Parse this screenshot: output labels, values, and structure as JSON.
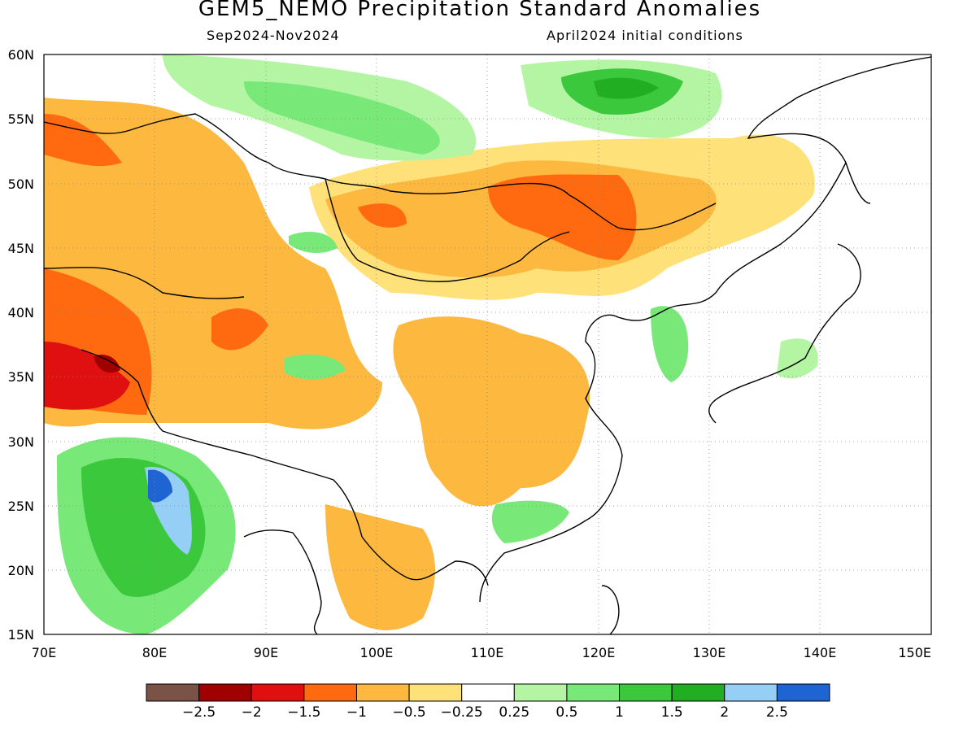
{
  "header": {
    "title": "GEM5_NEMO Precipitation Standard Anomalies",
    "period": "Sep2024-Nov2024",
    "init": "April2024 initial conditions"
  },
  "axes": {
    "lon_range": [
      70,
      150
    ],
    "lat_range": [
      15,
      60
    ],
    "x_ticks": [
      "70E",
      "80E",
      "90E",
      "100E",
      "110E",
      "120E",
      "130E",
      "140E",
      "150E"
    ],
    "y_ticks": [
      "15N",
      "20N",
      "25N",
      "30N",
      "35N",
      "40N",
      "45N",
      "50N",
      "55N",
      "60N"
    ],
    "grid": "dotted"
  },
  "colorbar": {
    "colors": [
      "#7b5246",
      "#a00000",
      "#e01010",
      "#ff6a10",
      "#fdb840",
      "#ffe17a",
      "#ffffff",
      "#b4f5a4",
      "#78e878",
      "#3cc83c",
      "#22ae22",
      "#96cff6",
      "#1e64d2"
    ],
    "labels": [
      "-2.5",
      "-2",
      "-1.5",
      "-1",
      "-0.5",
      "-0.25",
      "0.25",
      "0.5",
      "1",
      "1.5",
      "2",
      "2.5"
    ]
  },
  "chart_data": {
    "type": "heatmap",
    "title": "GEM5_NEMO Precipitation Standard Anomalies",
    "subtitle": "Sep2024-Nov2024",
    "note": "April2024 initial conditions",
    "xlim": [
      70,
      150
    ],
    "ylim": [
      15,
      60
    ],
    "levels": [
      -2.5,
      -2,
      -1.5,
      -1,
      -0.5,
      -0.25,
      0.25,
      0.5,
      1,
      1.5,
      2,
      2.5
    ],
    "regions": [
      {
        "lon": [
          78,
          84
        ],
        "lat": [
          16,
          28
        ],
        "value": 1.5
      },
      {
        "lon": [
          80,
          82
        ],
        "lat": [
          22,
          27
        ],
        "value": 2.5
      },
      {
        "lon": [
          119,
          126
        ],
        "lat": [
          54,
          59
        ],
        "value": 1.5
      },
      {
        "lon": [
          73,
          79
        ],
        "lat": [
          33,
          40
        ],
        "value": -1.5
      },
      {
        "lon": [
          110,
          118
        ],
        "lat": [
          47,
          50
        ],
        "value": -1
      },
      {
        "lon": [
          102,
          116
        ],
        "lat": [
          27,
          38
        ],
        "value": -0.5
      }
    ]
  }
}
